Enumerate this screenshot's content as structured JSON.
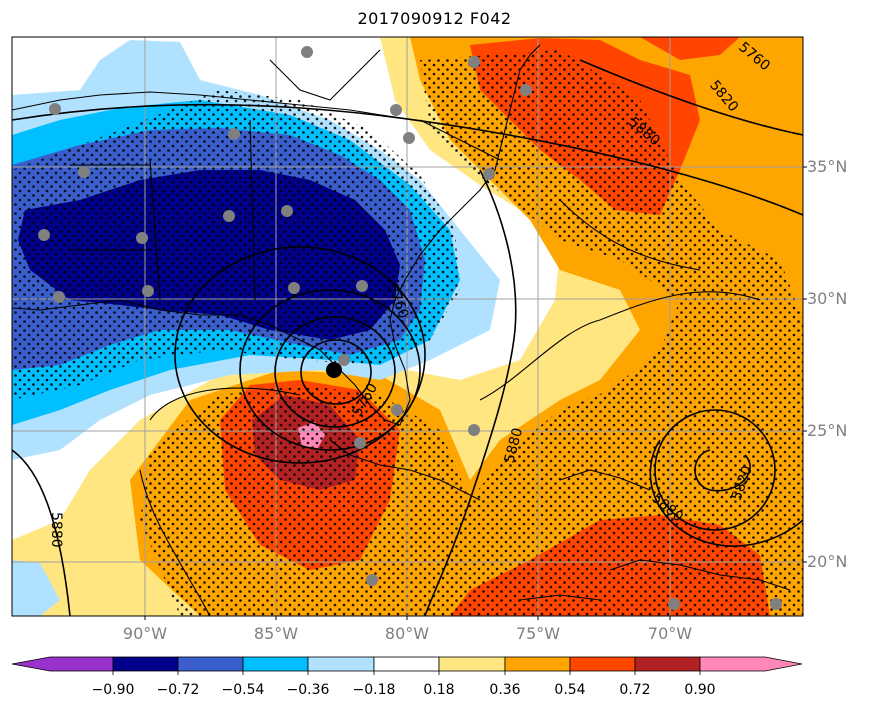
{
  "title": "2017090912 F042",
  "map": {
    "lat_labels": [
      "35°N",
      "30°N",
      "25°N",
      "20°N"
    ],
    "lon_labels": [
      "90°W",
      "85°W",
      "80°W",
      "75°W",
      "70°W"
    ],
    "contour_labels": [
      "5760",
      "5820",
      "5880",
      "5880",
      "5880",
      "5880",
      "5820",
      "5760",
      "5760"
    ],
    "hatching": "stippled",
    "storm_center_marker": "black-dot"
  },
  "colorbar": {
    "ticks": [
      "−0.90",
      "−0.72",
      "−0.54",
      "−0.36",
      "−0.18",
      "0.18",
      "0.36",
      "0.54",
      "0.72",
      "0.90"
    ],
    "colors": [
      "#9932cc",
      "#00008b",
      "#3a5fcd",
      "#00bfff",
      "#b0e2ff",
      "#ffffff",
      "#ffe680",
      "#ffa500",
      "#ff4500",
      "#b22222",
      "#ff88b8"
    ]
  }
}
